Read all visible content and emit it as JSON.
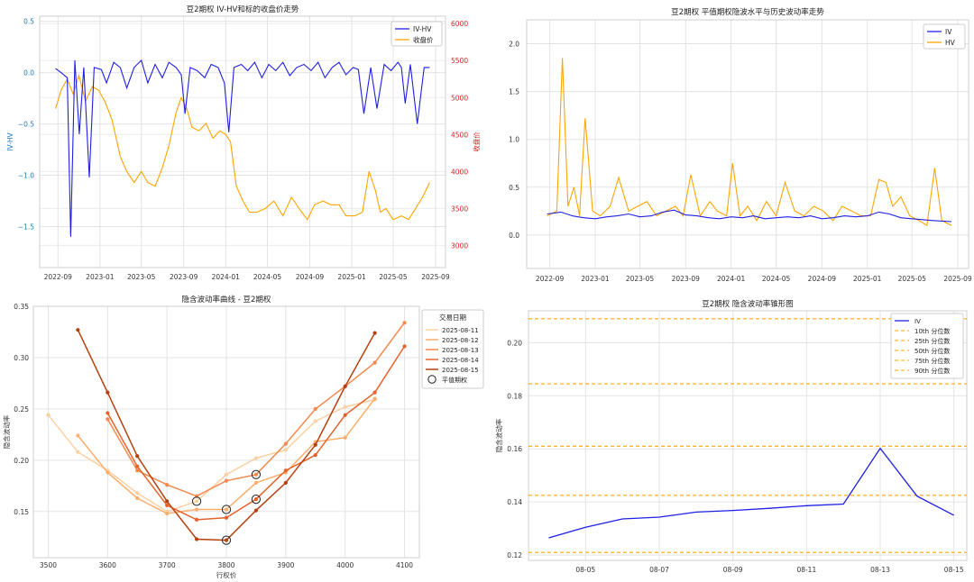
{
  "chart_data": [
    {
      "type": "line",
      "title": "豆2期权 IV-HV和标的收盘价走势",
      "xlabel": "",
      "ylabel": "IV-HV",
      "y2label": "收盘价",
      "ylim": [
        -1.9,
        0.55
      ],
      "y2lim": [
        2700,
        6100
      ],
      "yticks": [
        "0.5",
        "0.0",
        "−0.5",
        "−1.0",
        "−1.5"
      ],
      "y2ticks": [
        "6000",
        "5500",
        "5000",
        "4500",
        "4000",
        "3500",
        "3000"
      ],
      "xticks": [
        "2022-09",
        "2023-01",
        "2023-05",
        "2023-09",
        "2024-01",
        "2024-05",
        "2024-09",
        "2025-01",
        "2025-05",
        "2025-09"
      ],
      "legend_position": "top-right",
      "grid": true,
      "colors": {
        "ivhv": "#1f1fe6",
        "close": "#ffa500",
        "left_axis": "#1f77b4",
        "right_axis": "#e31a1c"
      },
      "series": [
        {
          "name": "IV-HV",
          "axis": "left",
          "x": [
            "2022-08-25",
            "2022-09-10",
            "2022-09-28",
            "2022-10-08",
            "2022-10-20",
            "2022-11-02",
            "2022-11-15",
            "2022-12-01",
            "2022-12-15",
            "2023-01-05",
            "2023-01-20",
            "2023-02-10",
            "2023-03-01",
            "2023-03-20",
            "2023-04-10",
            "2023-05-01",
            "2023-05-20",
            "2023-06-10",
            "2023-07-01",
            "2023-07-20",
            "2023-08-10",
            "2023-08-25",
            "2023-09-05",
            "2023-09-20",
            "2023-10-10",
            "2023-11-01",
            "2023-11-20",
            "2023-12-10",
            "2023-12-28",
            "2024-01-10",
            "2024-01-25",
            "2024-02-15",
            "2024-03-05",
            "2024-03-25",
            "2024-04-15",
            "2024-05-05",
            "2024-05-25",
            "2024-06-15",
            "2024-07-05",
            "2024-07-25",
            "2024-08-15",
            "2024-09-05",
            "2024-09-25",
            "2024-10-15",
            "2024-11-05",
            "2024-11-25",
            "2024-12-15",
            "2025-01-05",
            "2025-01-20",
            "2025-02-05",
            "2025-02-25",
            "2025-03-15",
            "2025-04-05",
            "2025-04-25",
            "2025-05-15",
            "2025-05-25",
            "2025-06-05",
            "2025-06-20",
            "2025-07-10",
            "2025-07-30",
            "2025-08-15"
          ],
          "values": [
            0.04,
            0.0,
            -0.05,
            -1.6,
            0.12,
            -0.6,
            0.05,
            -1.02,
            0.05,
            0.03,
            -0.1,
            0.1,
            0.05,
            -0.15,
            0.05,
            0.12,
            -0.1,
            0.08,
            -0.05,
            0.1,
            0.05,
            -0.02,
            -0.4,
            0.05,
            0.02,
            -0.05,
            0.08,
            0.05,
            -0.1,
            -0.58,
            0.05,
            0.08,
            0.02,
            0.1,
            -0.05,
            0.08,
            0.02,
            0.1,
            -0.03,
            0.05,
            0.08,
            0.02,
            0.1,
            -0.05,
            0.05,
            0.1,
            -0.02,
            0.05,
            0.03,
            -0.4,
            0.05,
            -0.35,
            0.08,
            0.02,
            0.1,
            0.05,
            -0.3,
            0.08,
            -0.5,
            0.05,
            0.05
          ]
        },
        {
          "name": "收盘价",
          "axis": "right",
          "x": [
            "2022-08-25",
            "2022-09-10",
            "2022-09-28",
            "2022-10-15",
            "2022-11-01",
            "2022-11-20",
            "2022-12-10",
            "2022-12-28",
            "2023-01-15",
            "2023-02-05",
            "2023-03-01",
            "2023-03-20",
            "2023-04-10",
            "2023-05-01",
            "2023-05-20",
            "2023-06-10",
            "2023-07-01",
            "2023-07-20",
            "2023-08-10",
            "2023-08-25",
            "2023-09-10",
            "2023-09-25",
            "2023-10-15",
            "2023-11-05",
            "2023-11-25",
            "2023-12-15",
            "2024-01-01",
            "2024-01-15",
            "2024-02-01",
            "2024-02-20",
            "2024-03-10",
            "2024-04-01",
            "2024-04-25",
            "2024-05-20",
            "2024-06-15",
            "2024-07-10",
            "2024-08-01",
            "2024-08-25",
            "2024-09-15",
            "2024-10-10",
            "2024-11-01",
            "2024-11-25",
            "2024-12-15",
            "2025-01-10",
            "2025-02-01",
            "2025-02-20",
            "2025-03-10",
            "2025-03-25",
            "2025-04-10",
            "2025-05-01",
            "2025-05-25",
            "2025-06-15",
            "2025-07-05",
            "2025-07-25",
            "2025-08-15"
          ],
          "values": [
            4850,
            5100,
            5250,
            5050,
            5300,
            4950,
            5150,
            5100,
            4950,
            4700,
            4200,
            4000,
            3850,
            4000,
            3850,
            3800,
            4050,
            4350,
            4800,
            5000,
            4850,
            4600,
            4550,
            4650,
            4450,
            4550,
            4500,
            4400,
            3800,
            3600,
            3450,
            3450,
            3500,
            3600,
            3400,
            3650,
            3500,
            3350,
            3550,
            3600,
            3550,
            3550,
            3400,
            3400,
            3450,
            4000,
            3750,
            3450,
            3500,
            3350,
            3400,
            3350,
            3500,
            3650,
            3850
          ]
        }
      ]
    },
    {
      "type": "line",
      "title": "豆2期权 平值期权隐波水平与历史波动率走势",
      "xlabel": "",
      "ylabel": "",
      "ylim": [
        -0.35,
        2.25
      ],
      "yticks": [
        "2.0",
        "1.5",
        "1.0",
        "0.5",
        "0.0"
      ],
      "xticks": [
        "2022-09",
        "2023-01",
        "2023-05",
        "2023-09",
        "2024-01",
        "2024-05",
        "2024-09",
        "2025-01",
        "2025-05",
        "2025-09"
      ],
      "legend_position": "top-right",
      "grid": true,
      "colors": {
        "iv": "#1f1fe6",
        "hv": "#ffa500"
      },
      "series": [
        {
          "name": "IV",
          "x": [
            "2022-08-25",
            "2022-10-01",
            "2022-11-01",
            "2022-12-01",
            "2023-01-01",
            "2023-02-01",
            "2023-03-01",
            "2023-04-01",
            "2023-05-01",
            "2023-06-01",
            "2023-07-01",
            "2023-08-01",
            "2023-09-01",
            "2023-10-01",
            "2023-11-01",
            "2023-12-01",
            "2024-01-01",
            "2024-02-01",
            "2024-03-01",
            "2024-04-01",
            "2024-05-01",
            "2024-06-01",
            "2024-07-01",
            "2024-08-01",
            "2024-09-01",
            "2024-10-01",
            "2024-11-01",
            "2024-12-01",
            "2025-01-01",
            "2025-02-01",
            "2025-03-01",
            "2025-04-01",
            "2025-05-01",
            "2025-06-01",
            "2025-07-01",
            "2025-08-15"
          ],
          "values": [
            0.22,
            0.24,
            0.2,
            0.18,
            0.17,
            0.19,
            0.2,
            0.22,
            0.19,
            0.2,
            0.24,
            0.26,
            0.21,
            0.2,
            0.18,
            0.17,
            0.19,
            0.18,
            0.2,
            0.17,
            0.18,
            0.19,
            0.18,
            0.2,
            0.17,
            0.18,
            0.2,
            0.19,
            0.2,
            0.24,
            0.22,
            0.18,
            0.17,
            0.16,
            0.15,
            0.14
          ]
        },
        {
          "name": "HV",
          "x": [
            "2022-08-25",
            "2022-09-20",
            "2022-10-05",
            "2022-10-20",
            "2022-11-05",
            "2022-11-20",
            "2022-12-05",
            "2022-12-25",
            "2023-01-15",
            "2023-02-10",
            "2023-03-05",
            "2023-04-01",
            "2023-04-25",
            "2023-05-20",
            "2023-06-15",
            "2023-07-10",
            "2023-08-05",
            "2023-08-25",
            "2023-09-15",
            "2023-10-10",
            "2023-11-05",
            "2023-11-25",
            "2023-12-20",
            "2024-01-05",
            "2024-01-25",
            "2024-02-15",
            "2024-03-10",
            "2024-04-05",
            "2024-05-01",
            "2024-05-25",
            "2024-06-20",
            "2024-07-15",
            "2024-08-10",
            "2024-09-05",
            "2024-10-01",
            "2024-10-25",
            "2024-11-20",
            "2024-12-15",
            "2025-01-10",
            "2025-02-01",
            "2025-02-20",
            "2025-03-10",
            "2025-04-01",
            "2025-04-25",
            "2025-05-20",
            "2025-06-10",
            "2025-07-01",
            "2025-07-20",
            "2025-08-15"
          ],
          "values": [
            0.2,
            0.25,
            1.85,
            0.3,
            0.5,
            0.2,
            1.22,
            0.25,
            0.2,
            0.3,
            0.6,
            0.25,
            0.3,
            0.35,
            0.2,
            0.25,
            0.3,
            0.2,
            0.63,
            0.2,
            0.35,
            0.25,
            0.2,
            0.75,
            0.2,
            0.3,
            0.15,
            0.35,
            0.2,
            0.55,
            0.25,
            0.2,
            0.3,
            0.25,
            0.15,
            0.3,
            0.25,
            0.2,
            0.2,
            0.58,
            0.55,
            0.3,
            0.4,
            0.2,
            0.15,
            0.1,
            0.7,
            0.15,
            0.1
          ]
        }
      ]
    },
    {
      "type": "line",
      "title": "隐含波动率曲线 - 豆2期权",
      "xlabel": "行权价",
      "ylabel": "隐含波动率",
      "xlim": [
        3475,
        4125
      ],
      "ylim": [
        0.105,
        0.35
      ],
      "xticks": [
        3500,
        3600,
        3700,
        3800,
        3900,
        4000,
        4100
      ],
      "yticks": [
        "0.35",
        "0.30",
        "0.25",
        "0.20",
        "0.15"
      ],
      "legend_title": "交易日期",
      "legend_position": "top-right",
      "grid": true,
      "atm_label": "平值期权",
      "series": [
        {
          "name": "2025-08-11",
          "color": "#fdd0a2",
          "x": [
            3500,
            3550,
            3600,
            3650,
            3700,
            3750,
            3800,
            3850,
            3900,
            3950,
            4000,
            4050
          ],
          "values": [
            0.244,
            0.208,
            0.19,
            0.168,
            0.15,
            0.16,
            0.186,
            0.202,
            0.21,
            0.238,
            0.252,
            0.259
          ],
          "atm": [
            3750,
            0.16
          ]
        },
        {
          "name": "2025-08-12",
          "color": "#fdae6b",
          "x": [
            3550,
            3600,
            3650,
            3700,
            3750,
            3800,
            3850,
            3900,
            3950,
            4000,
            4050
          ],
          "values": [
            0.224,
            0.188,
            0.163,
            0.148,
            0.152,
            0.152,
            0.178,
            0.188,
            0.218,
            0.222,
            0.26
          ],
          "atm": [
            3800,
            0.152
          ]
        },
        {
          "name": "2025-08-13",
          "color": "#f4894e",
          "x": [
            3600,
            3650,
            3700,
            3750,
            3800,
            3850,
            3900,
            3950,
            4000,
            4050,
            4100
          ],
          "values": [
            0.24,
            0.19,
            0.176,
            0.165,
            0.18,
            0.186,
            0.216,
            0.25,
            0.272,
            0.295,
            0.334
          ],
          "atm": [
            3850,
            0.186
          ]
        },
        {
          "name": "2025-08-14",
          "color": "#e5632b",
          "x": [
            3600,
            3650,
            3700,
            3750,
            3800,
            3850,
            3900,
            3950,
            4000,
            4050,
            4100
          ],
          "values": [
            0.246,
            0.194,
            0.156,
            0.142,
            0.144,
            0.162,
            0.19,
            0.205,
            0.244,
            0.266,
            0.311
          ],
          "atm": [
            3850,
            0.162
          ]
        },
        {
          "name": "2025-08-15",
          "color": "#b5410f",
          "x": [
            3550,
            3600,
            3650,
            3700,
            3750,
            3800,
            3850,
            3900,
            3950,
            4000,
            4050
          ],
          "values": [
            0.327,
            0.266,
            0.204,
            0.16,
            0.123,
            0.122,
            0.151,
            0.178,
            0.215,
            0.272,
            0.324
          ],
          "atm": [
            3800,
            0.122
          ]
        }
      ]
    },
    {
      "type": "line",
      "title": "豆2期权 隐含波动率锥形图",
      "xlabel": "",
      "ylabel": "隐含波动率",
      "ylim": [
        0.118,
        0.212
      ],
      "yticks": [
        "0.20",
        "0.18",
        "0.16",
        "0.14",
        "0.12"
      ],
      "xticks": [
        "08-05",
        "08-07",
        "08-09",
        "08-11",
        "08-13",
        "08-15"
      ],
      "legend_position": "top-right",
      "grid": true,
      "colors": {
        "iv": "#1f1fe6",
        "percentile": "#ffa500"
      },
      "series": [
        {
          "name": "IV",
          "x": [
            "08-04",
            "08-05",
            "08-06",
            "08-07",
            "08-08",
            "08-09",
            "08-10",
            "08-11",
            "08-12",
            "08-13",
            "08-14",
            "08-15"
          ],
          "values": [
            0.1265,
            0.1305,
            0.1336,
            0.1343,
            0.1362,
            0.1368,
            0.1376,
            0.1386,
            0.1392,
            0.1602,
            0.1422,
            0.135
          ]
        }
      ],
      "percentiles": [
        {
          "name": "10th 分位数",
          "value": 0.121
        },
        {
          "name": "25th 分位数",
          "value": 0.1425
        },
        {
          "name": "50th 分位数",
          "value": 0.161
        },
        {
          "name": "75th 分位数",
          "value": 0.1845
        },
        {
          "name": "90th 分位数",
          "value": 0.209
        }
      ]
    }
  ]
}
